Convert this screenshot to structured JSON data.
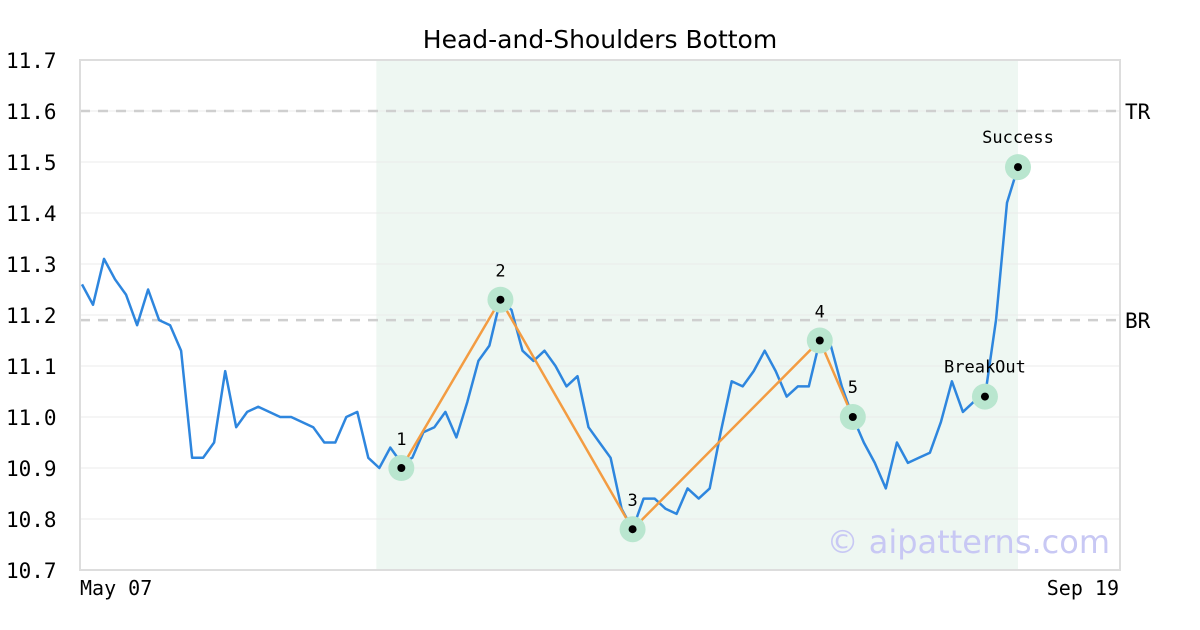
{
  "chart_data": {
    "type": "line",
    "title": "Head-and-Shoulders Bottom",
    "xlabel": "",
    "ylabel": "",
    "x_tick_labels": [
      "May 07",
      "Sep 19"
    ],
    "ylim": [
      10.7,
      11.7
    ],
    "yticks": [
      "10.7",
      "10.8",
      "10.9",
      "11.0",
      "11.1",
      "11.2",
      "11.3",
      "11.4",
      "11.5",
      "11.6",
      "11.7"
    ],
    "grid": true,
    "series": [
      {
        "values": [
          11.26,
          11.22,
          11.31,
          11.27,
          11.24,
          11.18,
          11.25,
          11.19,
          11.18,
          11.13,
          10.92,
          10.92,
          10.95,
          11.09,
          10.98,
          11.01,
          11.02,
          11.01,
          11.0,
          11.0,
          10.99,
          10.98,
          10.95,
          10.95,
          11.0,
          11.01,
          10.92,
          10.9,
          10.94,
          10.91,
          10.92,
          10.97,
          10.98,
          11.01,
          10.96,
          11.03,
          11.11,
          11.14,
          11.23,
          11.21,
          11.13,
          11.11,
          11.13,
          11.1,
          11.06,
          11.08,
          10.98,
          10.95,
          10.92,
          10.82,
          10.78,
          10.84,
          10.84,
          10.82,
          10.81,
          10.86,
          10.84,
          10.86,
          10.97,
          11.07,
          11.06,
          11.09,
          11.13,
          11.09,
          11.04,
          11.06,
          11.06,
          11.15,
          11.14,
          11.06,
          11.0,
          10.95,
          10.91,
          10.86,
          10.95,
          10.91,
          10.92,
          10.93,
          10.99,
          11.07,
          11.01,
          11.03,
          11.04,
          11.19,
          11.42,
          11.49,
          11.49
        ],
        "color": "#2e86de"
      }
    ],
    "pattern_region": {
      "start_index": 27,
      "end_index": 85,
      "color": "#eef7f2"
    },
    "pattern_line": {
      "color": "#f39c42",
      "points": [
        {
          "label": "1",
          "index": 29,
          "value": 10.9
        },
        {
          "label": "2",
          "index": 38,
          "value": 11.23
        },
        {
          "label": "3",
          "index": 50,
          "value": 10.78
        },
        {
          "label": "4",
          "index": 67,
          "value": 11.15
        },
        {
          "label": "5",
          "index": 70,
          "value": 11.0
        }
      ]
    },
    "markers": [
      {
        "label": "BreakOut",
        "index": 82,
        "value": 11.04
      },
      {
        "label": "Success",
        "index": 85,
        "value": 11.49
      }
    ],
    "reference_lines": [
      {
        "label": "TR",
        "value": 11.6
      },
      {
        "label": "BR",
        "value": 11.19
      }
    ],
    "watermark": "© aipatterns.com"
  }
}
